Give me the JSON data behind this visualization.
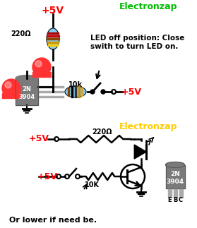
{
  "bg_color": "#ffffff",
  "title_color": "#00bb00",
  "title_text": "Electronzap",
  "title2_text": "Electronzap",
  "red_color": "#ff0000",
  "black_color": "#000000",
  "yellow_color": "#ffcc00",
  "note_text": "LED off position: Close\nswith to turn LED on.",
  "note2_text": "Or lower if need be.",
  "v5_text": "+5V",
  "r220_text": "220Ω",
  "r10k_text": "10k",
  "r10K_text": "10K",
  "r220b_text": "220Ω",
  "ebc_text": [
    "E",
    "B",
    "C"
  ],
  "transistor_label": "2N\n3904",
  "transistor_label2": "2N\n3904"
}
